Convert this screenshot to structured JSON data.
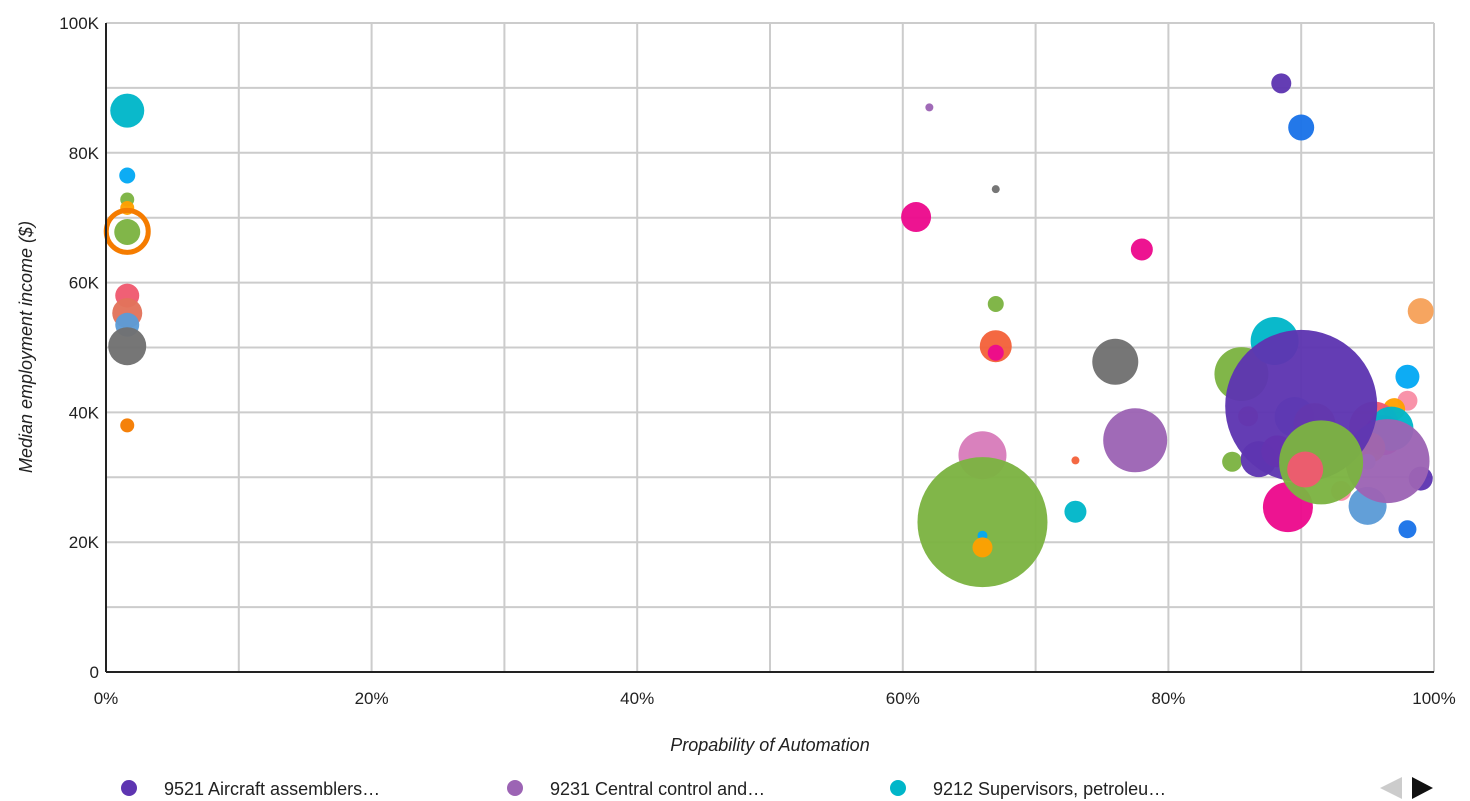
{
  "chart_data": {
    "type": "scatter",
    "variant": "bubble",
    "xlabel": "Propability of Automation",
    "ylabel": "Median employment income ($)",
    "xlim": [
      0,
      100
    ],
    "ylim": [
      0,
      100000
    ],
    "x_ticks": [
      {
        "value": 0,
        "label": "0%"
      },
      {
        "value": 20,
        "label": "20%"
      },
      {
        "value": 40,
        "label": "40%"
      },
      {
        "value": 60,
        "label": "60%"
      },
      {
        "value": 80,
        "label": "80%"
      },
      {
        "value": 100,
        "label": "100%"
      }
    ],
    "x_gridlines": [
      0,
      10,
      20,
      30,
      40,
      50,
      60,
      70,
      80,
      90,
      100
    ],
    "y_ticks": [
      {
        "value": 0,
        "label": "0"
      },
      {
        "value": 20000,
        "label": "20K"
      },
      {
        "value": 40000,
        "label": "40K"
      },
      {
        "value": 60000,
        "label": "60K"
      },
      {
        "value": 80000,
        "label": "80K"
      },
      {
        "value": 100000,
        "label": "100K"
      }
    ],
    "y_gridlines": [
      0,
      10000,
      20000,
      30000,
      40000,
      50000,
      60000,
      70000,
      80000,
      90000,
      100000
    ],
    "grid": true,
    "legend_position": "bottom",
    "legend": [
      {
        "label": "9521 Aircraft assemblers…",
        "color": "#5e35b1"
      },
      {
        "label": "9231 Central control and…",
        "color": "#9c64b4"
      },
      {
        "label": "9212 Supervisors, petroleu…",
        "color": "#00b6c9"
      }
    ],
    "legend_nav": {
      "prev_color": "#cccccc",
      "next_color": "#111111"
    },
    "points": [
      {
        "x": 1.6,
        "y": 86500,
        "r": 17,
        "color": "#00b6c9"
      },
      {
        "x": 1.6,
        "y": 76500,
        "r": 8,
        "color": "#03a9f4"
      },
      {
        "x": 1.6,
        "y": 72800,
        "r": 7,
        "color": "#7cb342"
      },
      {
        "x": 1.6,
        "y": 71500,
        "r": 7,
        "color": "#ffa000"
      },
      {
        "x": 1.6,
        "y": 67900,
        "r": 21,
        "color": "#f57c00",
        "fill_opacity": 0
      },
      {
        "x": 1.6,
        "y": 67800,
        "r": 13,
        "color": "#7cb342"
      },
      {
        "x": 1.6,
        "y": 58000,
        "r": 12,
        "color": "#ef5a6f"
      },
      {
        "x": 1.6,
        "y": 55300,
        "r": 15,
        "color": "#e2735b"
      },
      {
        "x": 1.6,
        "y": 53500,
        "r": 12,
        "color": "#5c9bd6"
      },
      {
        "x": 1.6,
        "y": 50200,
        "r": 19,
        "color": "#707070"
      },
      {
        "x": 1.6,
        "y": 38000,
        "r": 7,
        "color": "#f57c00"
      },
      {
        "x": 62,
        "y": 87000,
        "r": 4,
        "color": "#9c64b4"
      },
      {
        "x": 61,
        "y": 70100,
        "r": 15,
        "color": "#ec0a8c"
      },
      {
        "x": 67,
        "y": 74400,
        "r": 4,
        "color": "#707070"
      },
      {
        "x": 67,
        "y": 56700,
        "r": 8,
        "color": "#7cb342"
      },
      {
        "x": 67,
        "y": 50200,
        "r": 16,
        "color": "#f4623a"
      },
      {
        "x": 67,
        "y": 49200,
        "r": 8,
        "color": "#ec0a8c"
      },
      {
        "x": 66,
        "y": 33400,
        "r": 24,
        "color": "#d77cba"
      },
      {
        "x": 66,
        "y": 23100,
        "r": 65,
        "color": "#7cb342"
      },
      {
        "x": 66,
        "y": 21000,
        "r": 5,
        "color": "#03a9f4"
      },
      {
        "x": 66,
        "y": 19200,
        "r": 10,
        "color": "#ffa000"
      },
      {
        "x": 73,
        "y": 32600,
        "r": 4,
        "color": "#f4623a"
      },
      {
        "x": 73,
        "y": 24700,
        "r": 11,
        "color": "#00b6c9"
      },
      {
        "x": 76,
        "y": 47800,
        "r": 23,
        "color": "#707070"
      },
      {
        "x": 78,
        "y": 65100,
        "r": 11,
        "color": "#ec0a8c"
      },
      {
        "x": 77.5,
        "y": 35700,
        "r": 32,
        "color": "#9c64b4"
      },
      {
        "x": 88.5,
        "y": 90700,
        "r": 10,
        "color": "#5e35b1"
      },
      {
        "x": 90,
        "y": 83900,
        "r": 13,
        "color": "#1a73e8"
      },
      {
        "x": 99,
        "y": 55600,
        "r": 13,
        "color": "#f6a15a"
      },
      {
        "x": 85.5,
        "y": 45900,
        "r": 27,
        "color": "#7cb342"
      },
      {
        "x": 88,
        "y": 51000,
        "r": 24,
        "color": "#00b6c9"
      },
      {
        "x": 98,
        "y": 45500,
        "r": 12,
        "color": "#03a9f4"
      },
      {
        "x": 98,
        "y": 41800,
        "r": 10,
        "color": "#f88fa6"
      },
      {
        "x": 86,
        "y": 39400,
        "r": 10,
        "color": "#ef5a6f"
      },
      {
        "x": 84.8,
        "y": 32400,
        "r": 10,
        "color": "#7cb342"
      },
      {
        "x": 86.8,
        "y": 32800,
        "r": 18,
        "color": "#5e35b1"
      },
      {
        "x": 97,
        "y": 40500,
        "r": 11,
        "color": "#ffa000"
      },
      {
        "x": 99,
        "y": 29800,
        "r": 12,
        "color": "#5e35b1"
      },
      {
        "x": 98,
        "y": 22000,
        "r": 9,
        "color": "#1a73e8"
      },
      {
        "x": 89.5,
        "y": 39300,
        "r": 20,
        "color": "#5c9bd6"
      },
      {
        "x": 91,
        "y": 38200,
        "r": 21,
        "color": "#e2735b"
      },
      {
        "x": 95.5,
        "y": 37800,
        "r": 25,
        "color": "#ef5a6f"
      },
      {
        "x": 96.2,
        "y": 36500,
        "r": 20,
        "color": "#ec0a8c"
      },
      {
        "x": 96.8,
        "y": 37500,
        "r": 22,
        "color": "#00b6c9"
      },
      {
        "x": 95.2,
        "y": 34600,
        "r": 15,
        "color": "#ffa000"
      },
      {
        "x": 95,
        "y": 32400,
        "r": 8,
        "color": "#9ad6f2"
      },
      {
        "x": 95,
        "y": 25600,
        "r": 19,
        "color": "#5c9bd6"
      },
      {
        "x": 93,
        "y": 27900,
        "r": 10,
        "color": "#f88fa6"
      },
      {
        "x": 88.2,
        "y": 34000,
        "r": 16,
        "color": "#ec0a8c"
      },
      {
        "x": 89,
        "y": 25400,
        "r": 25,
        "color": "#ec0a8c"
      },
      {
        "x": 96.5,
        "y": 32500,
        "r": 42,
        "color": "#9c64b4"
      },
      {
        "x": 90,
        "y": 41000,
        "r": 76,
        "color": "#5e35b1"
      },
      {
        "x": 91.5,
        "y": 32300,
        "r": 42,
        "color": "#7cb342"
      },
      {
        "x": 90.3,
        "y": 31200,
        "r": 18,
        "color": "#ef5a6f"
      }
    ]
  }
}
